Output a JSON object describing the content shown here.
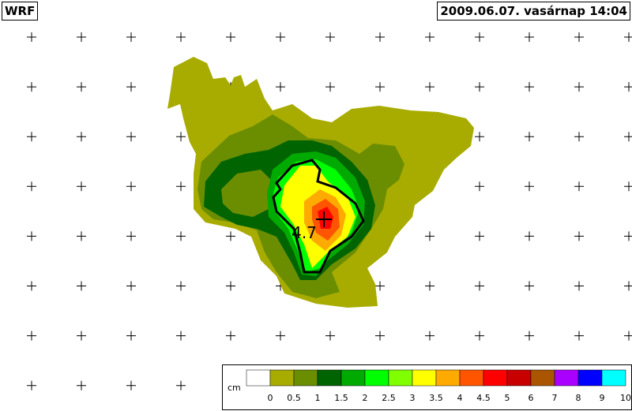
{
  "header": {
    "model": "WRF",
    "datetime": "2009.06.07. vasárnap 14:04"
  },
  "max_value": 4.7,
  "legend": {
    "unit": "cm",
    "ticks": [
      0,
      0.5,
      1,
      1.5,
      2,
      2.5,
      3,
      3.5,
      4,
      4.5,
      5,
      6,
      7,
      8,
      9,
      10
    ],
    "colors": [
      "#ffffff",
      "#a8ac00",
      "#6b8e00",
      "#006400",
      "#00aa00",
      "#00ff00",
      "#80ff00",
      "#ffff00",
      "#ffaa00",
      "#ff5500",
      "#ff0000",
      "#c80000",
      "#aa5500",
      "#aa00ff",
      "#0000ff",
      "#00ffff"
    ]
  }
}
